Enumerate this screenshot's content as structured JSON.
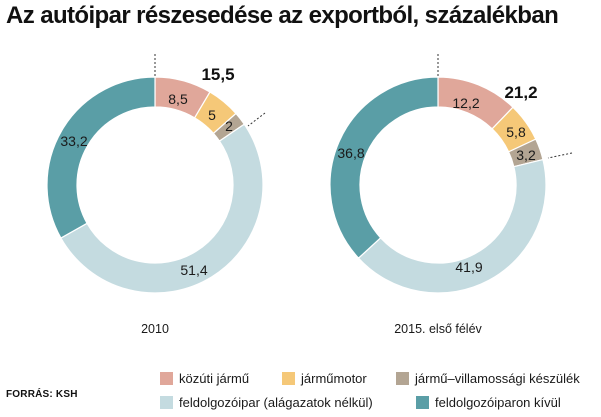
{
  "title": "Az autóipar részesedése az exportból, százalékban",
  "source": "FORRÁS: KSH",
  "colors": {
    "kozuti": "#e0a79a",
    "motor": "#f5c878",
    "villamossagi": "#b3a593",
    "feldolgozoipar": "#c4dbe0",
    "kivul": "#5a9ea6"
  },
  "chart_data": [
    {
      "type": "donut",
      "caption": "2010",
      "total_label": "15,5",
      "segments": [
        {
          "series": "kozuti",
          "name": "közúti jármű",
          "value": 8.5,
          "label": "8,5"
        },
        {
          "series": "motor",
          "name": "járműmotor",
          "value": 5,
          "label": "5"
        },
        {
          "series": "villamossagi",
          "name": "jármű-villamossági készülék",
          "value": 2,
          "label": "2"
        },
        {
          "series": "feldolgozoipar",
          "name": "feldolgozóipar (alágazatok nélkül)",
          "value": 51.4,
          "label": "51,4"
        },
        {
          "series": "kivul",
          "name": "feldolgozóiparon kívül",
          "value": 33.2,
          "label": "33,2"
        }
      ]
    },
    {
      "type": "donut",
      "caption": "2015. első félév",
      "total_label": "21,2",
      "segments": [
        {
          "series": "kozuti",
          "name": "közúti jármű",
          "value": 12.2,
          "label": "12,2"
        },
        {
          "series": "motor",
          "name": "járműmotor",
          "value": 5.8,
          "label": "5,8"
        },
        {
          "series": "villamossagi",
          "name": "jármű-villamossági készülék",
          "value": 3.2,
          "label": "3,2"
        },
        {
          "series": "feldolgozoipar",
          "name": "feldolgozóipar (alágazatok nélkül)",
          "value": 41.9,
          "label": "41,9"
        },
        {
          "series": "kivul",
          "name": "feldolgozóiparon kívül",
          "value": 36.8,
          "label": "36,8"
        }
      ]
    }
  ],
  "legend": [
    {
      "series": "kozuti",
      "label": "közúti jármű"
    },
    {
      "series": "motor",
      "label": "járműmotor"
    },
    {
      "series": "villamossagi",
      "label": "jármű–villamossági készülék"
    },
    {
      "series": "feldolgozoipar",
      "label": "feldolgozóipar (alágazatok nélkül)"
    },
    {
      "series": "kivul",
      "label": "feldolgozóiparon kívül"
    }
  ]
}
